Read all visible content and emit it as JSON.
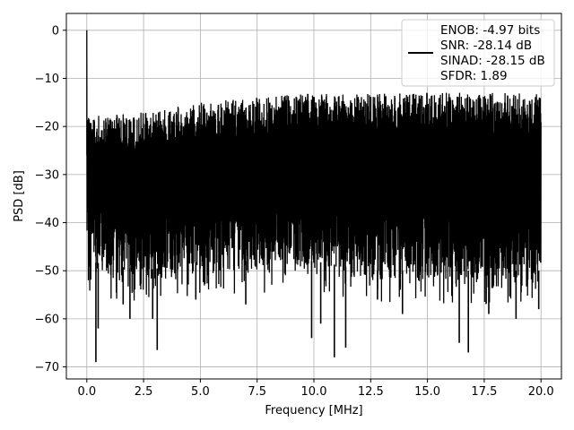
{
  "chart_data": {
    "type": "line",
    "title": "",
    "xlabel": "Frequency [MHz]",
    "ylabel": "PSD [dB]",
    "xlim": [
      -0.9,
      20.9
    ],
    "ylim": [
      -72.5,
      3.5
    ],
    "xticks": [
      0.0,
      2.5,
      5.0,
      7.5,
      10.0,
      12.5,
      15.0,
      17.5,
      20.0
    ],
    "xtick_labels": [
      "0.0",
      "2.5",
      "5.0",
      "7.5",
      "10.0",
      "12.5",
      "15.0",
      "17.5",
      "20.0"
    ],
    "yticks": [
      0,
      -10,
      -20,
      -30,
      -40,
      -50,
      -60,
      -70
    ],
    "ytick_labels": [
      "0",
      "−10",
      "−20",
      "−30",
      "−40",
      "−50",
      "−60",
      "−70"
    ],
    "grid": true,
    "legend": {
      "placement": "upper-right",
      "entries": [
        "ENOB: -4.97 bits",
        "SNR: -28.14 dB",
        "SINAD: -28.15 dB",
        "SFDR: 1.89"
      ]
    },
    "series": [
      {
        "color": "#000000",
        "x_range": [
          0.0,
          20.0
        ],
        "description": "dense noise-like PSD trace",
        "spike": {
          "x": 0.0,
          "y": 0.0
        },
        "upper_envelope": [
          [
            0.0,
            -18
          ],
          [
            2.5,
            -17
          ],
          [
            5.0,
            -15
          ],
          [
            7.5,
            -14
          ],
          [
            10.0,
            -13
          ],
          [
            12.5,
            -13
          ],
          [
            15.0,
            -13
          ],
          [
            17.5,
            -13
          ],
          [
            20.0,
            -13
          ]
        ],
        "lower_envelope": [
          [
            0.0,
            -50
          ],
          [
            2.5,
            -52
          ],
          [
            5.0,
            -50
          ],
          [
            7.5,
            -50
          ],
          [
            10.0,
            -50
          ],
          [
            12.5,
            -52
          ],
          [
            15.0,
            -52
          ],
          [
            17.5,
            -52
          ],
          [
            20.0,
            -52
          ]
        ],
        "deep_dips": [
          [
            0.4,
            -69
          ],
          [
            0.5,
            -62
          ],
          [
            1.6,
            -57
          ],
          [
            1.9,
            -60
          ],
          [
            2.9,
            -60
          ],
          [
            3.1,
            -66.5
          ],
          [
            4.8,
            -56
          ],
          [
            7.0,
            -57
          ],
          [
            9.9,
            -64
          ],
          [
            10.3,
            -61
          ],
          [
            10.9,
            -68
          ],
          [
            11.4,
            -66
          ],
          [
            12.8,
            -56
          ],
          [
            13.9,
            -59
          ],
          [
            16.4,
            -65
          ],
          [
            16.8,
            -67
          ],
          [
            17.7,
            -59
          ],
          [
            18.9,
            -60
          ],
          [
            19.9,
            -58
          ]
        ]
      }
    ]
  }
}
